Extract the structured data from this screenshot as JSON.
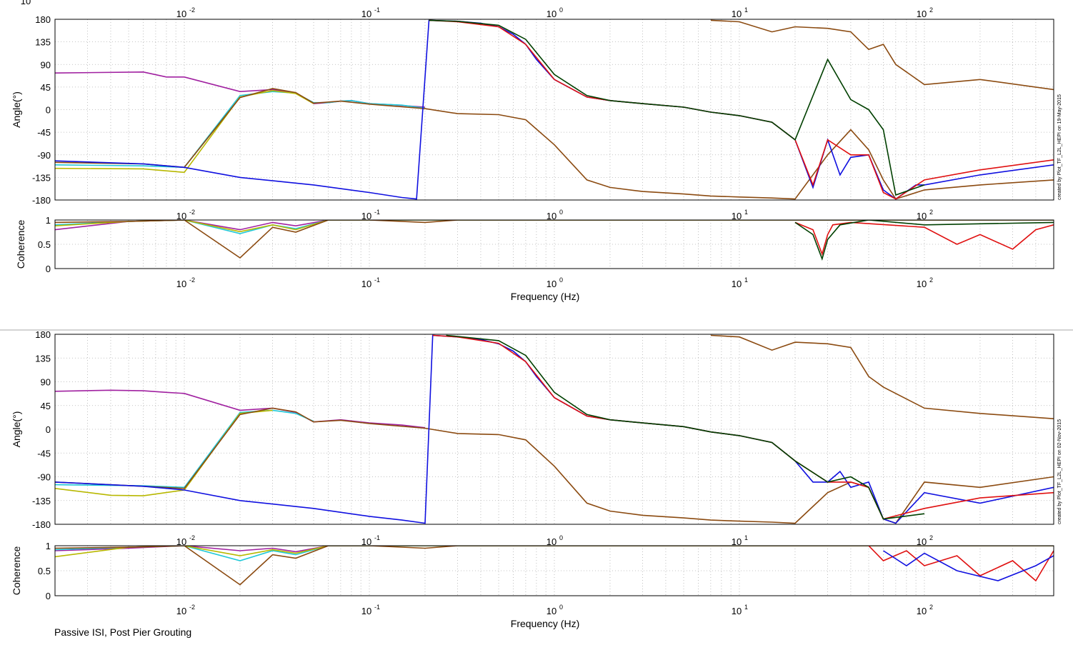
{
  "chart_data": [
    {
      "type": "line",
      "panel": "phase",
      "ylabel": "Angle(°)",
      "xscale": "log",
      "xlim": [
        0.002,
        500
      ],
      "ylim": [
        -180,
        180
      ],
      "yticks": [
        180,
        135,
        90,
        45,
        0,
        -45,
        -90,
        -135,
        -180
      ],
      "xtick_labels": [
        {
          "base": "10",
          "exp": "-2"
        },
        {
          "base": "10",
          "exp": "-1"
        },
        {
          "base": "10",
          "exp": "0"
        },
        {
          "base": "10",
          "exp": "1"
        },
        {
          "base": "10",
          "exp": "2"
        }
      ],
      "grid": true,
      "side_note": "created by Plot_TF_L2L_HEPI on 19-May-2015",
      "series": [
        {
          "color": "#a020a0",
          "x": [
            0.002,
            0.006,
            0.008,
            0.01,
            0.02,
            0.03,
            0.04,
            0.05,
            0.06,
            0.07,
            0.08,
            0.1,
            0.13,
            0.2
          ],
          "y": [
            73,
            75,
            65,
            65,
            36,
            40,
            33,
            12,
            14,
            17,
            18,
            12,
            10,
            5
          ]
        },
        {
          "color": "#20c8d8",
          "x": [
            0.002,
            0.006,
            0.01,
            0.02,
            0.03,
            0.04,
            0.05,
            0.06,
            0.07,
            0.08,
            0.1,
            0.15,
            0.2
          ],
          "y": [
            -110,
            -112,
            -115,
            28,
            36,
            33,
            14,
            14,
            17,
            18,
            12,
            9,
            3
          ]
        },
        {
          "color": "#b8b800",
          "x": [
            0.002,
            0.006,
            0.01,
            0.02,
            0.03,
            0.04,
            0.05
          ],
          "y": [
            -117,
            -118,
            -125,
            25,
            38,
            32,
            12
          ]
        },
        {
          "color": "#8b4a10",
          "x": [
            0.002,
            0.006,
            0.01,
            0.02,
            0.03,
            0.04,
            0.05,
            0.07,
            0.1,
            0.2,
            0.3,
            0.5,
            0.7,
            1,
            1.5,
            2,
            3,
            5,
            7,
            10,
            15,
            20,
            30,
            40,
            50,
            60,
            70,
            100,
            200,
            500
          ],
          "y": [
            -105,
            -108,
            -115,
            24,
            42,
            34,
            13,
            17,
            11,
            2,
            -8,
            -10,
            -20,
            -70,
            -140,
            -155,
            -163,
            -168,
            -172,
            -174,
            -176,
            -178,
            -90,
            -40,
            -80,
            -140,
            -178,
            -160,
            -150,
            -140
          ]
        },
        {
          "color": "#1010e0",
          "x": [
            0.002,
            0.006,
            0.01,
            0.02,
            0.05,
            0.1,
            0.15,
            0.18,
            0.21,
            0.3,
            0.4,
            0.5,
            0.6,
            0.7,
            0.8,
            1,
            1.5,
            2,
            3,
            5,
            7,
            10,
            15,
            20,
            25,
            30,
            35,
            40,
            50,
            60,
            70,
            90,
            100,
            200,
            500
          ],
          "y": [
            -102,
            -108,
            -115,
            -135,
            -150,
            -165,
            -175,
            -178,
            178,
            176,
            172,
            165,
            150,
            130,
            100,
            60,
            25,
            18,
            12,
            5,
            -5,
            -12,
            -25,
            -60,
            -155,
            -60,
            -130,
            -95,
            -90,
            -160,
            -178,
            -150,
            -150,
            -130,
            -110
          ]
        },
        {
          "color": "#e01010",
          "x": [
            0.21,
            0.3,
            0.5,
            0.7,
            1,
            1.5,
            2,
            3,
            5,
            7,
            10,
            15,
            20,
            25,
            30,
            40,
            50,
            60,
            70,
            100,
            200,
            500
          ],
          "y": [
            178,
            175,
            165,
            130,
            60,
            25,
            18,
            12,
            5,
            -5,
            -12,
            -25,
            -60,
            -150,
            -60,
            -90,
            -90,
            -165,
            -178,
            -140,
            -120,
            -100
          ]
        },
        {
          "color": "#004000",
          "x": [
            0.21,
            0.3,
            0.5,
            0.7,
            1,
            1.5,
            2,
            3,
            5,
            7,
            10,
            15,
            20,
            30,
            40,
            50,
            60,
            70,
            100
          ],
          "y": [
            178,
            176,
            168,
            140,
            70,
            28,
            18,
            12,
            5,
            -5,
            -12,
            -25,
            -60,
            100,
            20,
            0,
            -40,
            -170,
            -150
          ]
        },
        {
          "color": "#8b4a10",
          "x": [
            7,
            10,
            15,
            20,
            30,
            40,
            50,
            60,
            70,
            100,
            200,
            500
          ],
          "y": [
            178,
            175,
            155,
            165,
            162,
            155,
            120,
            130,
            90,
            50,
            60,
            40
          ]
        }
      ]
    },
    {
      "type": "line",
      "panel": "coherence",
      "ylabel": "Coherence",
      "xlabel": "Frequency (Hz)",
      "xscale": "log",
      "xlim": [
        0.002,
        500
      ],
      "ylim": [
        0,
        1
      ],
      "yticks": [
        1,
        0.5,
        0
      ],
      "ytick_labels": [
        "1",
        "0.5",
        "0"
      ],
      "xtick_labels": [
        {
          "base": "10",
          "exp": "-2"
        },
        {
          "base": "10",
          "exp": "-1"
        },
        {
          "base": "10",
          "exp": "0"
        },
        {
          "base": "10",
          "exp": "1"
        },
        {
          "base": "10",
          "exp": "2"
        }
      ],
      "grid": true,
      "series": [
        {
          "color": "#a020a0",
          "x": [
            0.002,
            0.005,
            0.01,
            0.02,
            0.03,
            0.04,
            0.06,
            0.1,
            0.5,
            500
          ],
          "y": [
            0.8,
            0.97,
            1,
            0.8,
            0.95,
            0.88,
            1,
            1,
            1,
            1
          ]
        },
        {
          "color": "#20c8d8",
          "x": [
            0.002,
            0.005,
            0.01,
            0.02,
            0.03,
            0.04,
            0.06,
            0.1,
            0.5,
            500
          ],
          "y": [
            0.9,
            0.97,
            1,
            0.72,
            0.9,
            0.82,
            1,
            1,
            1,
            1
          ]
        },
        {
          "color": "#b8b800",
          "x": [
            0.002,
            0.005,
            0.01,
            0.02,
            0.03,
            0.04,
            0.06,
            0.1,
            0.5,
            500
          ],
          "y": [
            0.88,
            0.97,
            1,
            0.76,
            0.9,
            0.8,
            1,
            1,
            1,
            1
          ]
        },
        {
          "color": "#8b4a10",
          "x": [
            0.002,
            0.005,
            0.01,
            0.02,
            0.03,
            0.04,
            0.06,
            0.1,
            0.2,
            0.3,
            0.5,
            500
          ],
          "y": [
            0.95,
            0.97,
            1,
            0.22,
            0.85,
            0.75,
            1,
            1,
            0.95,
            1,
            1,
            1
          ]
        },
        {
          "color": "#e01010",
          "x": [
            20,
            25,
            28,
            30,
            32,
            40,
            100,
            150,
            200,
            300,
            400,
            500
          ],
          "y": [
            0.95,
            0.8,
            0.3,
            0.7,
            0.9,
            0.95,
            0.85,
            0.5,
            0.7,
            0.4,
            0.8,
            0.9
          ]
        },
        {
          "color": "#004000",
          "x": [
            20,
            25,
            28,
            30,
            35,
            50,
            100,
            500
          ],
          "y": [
            0.95,
            0.7,
            0.2,
            0.6,
            0.9,
            1,
            0.9,
            0.95
          ]
        }
      ]
    },
    {
      "type": "line",
      "panel": "phase",
      "ylabel": "Angle(°)",
      "xscale": "log",
      "xlim": [
        0.002,
        500
      ],
      "ylim": [
        -180,
        180
      ],
      "yticks": [
        180,
        135,
        90,
        45,
        0,
        -45,
        -90,
        -135,
        -180
      ],
      "grid": true,
      "side_note": "created by Plot_TF_L2L_HEPI on 02-Nov-2015",
      "series": [
        {
          "color": "#a020a0",
          "x": [
            0.002,
            0.004,
            0.006,
            0.008,
            0.01,
            0.02,
            0.03,
            0.04,
            0.05,
            0.07,
            0.1,
            0.15,
            0.2
          ],
          "y": [
            72,
            74,
            73,
            70,
            68,
            36,
            40,
            32,
            14,
            18,
            12,
            8,
            3
          ]
        },
        {
          "color": "#20c8d8",
          "x": [
            0.002,
            0.006,
            0.01,
            0.02,
            0.03,
            0.04,
            0.05
          ],
          "y": [
            -105,
            -107,
            -110,
            32,
            36,
            30,
            15
          ]
        },
        {
          "color": "#b8b800",
          "x": [
            0.002,
            0.004,
            0.006,
            0.01,
            0.02,
            0.03
          ],
          "y": [
            -112,
            -125,
            -126,
            -115,
            30,
            36
          ]
        },
        {
          "color": "#8b4a10",
          "x": [
            0.002,
            0.006,
            0.01,
            0.02,
            0.03,
            0.04,
            0.05,
            0.07,
            0.1,
            0.2,
            0.3,
            0.5,
            0.7,
            1,
            1.5,
            2,
            3,
            5,
            7,
            10,
            15,
            20,
            30,
            40,
            50,
            60,
            70,
            100,
            200,
            500
          ],
          "y": [
            -100,
            -108,
            -112,
            28,
            40,
            33,
            14,
            17,
            11,
            2,
            -8,
            -10,
            -20,
            -70,
            -140,
            -155,
            -163,
            -168,
            -172,
            -174,
            -176,
            -178,
            -120,
            -100,
            -110,
            -170,
            -178,
            -100,
            -110,
            -90
          ]
        },
        {
          "color": "#1010e0",
          "x": [
            0.002,
            0.006,
            0.01,
            0.02,
            0.05,
            0.1,
            0.15,
            0.2,
            0.22,
            0.3,
            0.4,
            0.5,
            0.6,
            0.7,
            0.8,
            1,
            1.5,
            2,
            3,
            5,
            7,
            10,
            15,
            20,
            25,
            30,
            35,
            40,
            50,
            60,
            70,
            100,
            200,
            500
          ],
          "y": [
            -100,
            -108,
            -115,
            -135,
            -150,
            -165,
            -172,
            -178,
            178,
            175,
            170,
            162,
            148,
            128,
            100,
            60,
            25,
            18,
            12,
            5,
            -5,
            -12,
            -25,
            -60,
            -100,
            -100,
            -80,
            -110,
            -100,
            -170,
            -178,
            -120,
            -140,
            -110
          ]
        },
        {
          "color": "#e01010",
          "x": [
            0.22,
            0.3,
            0.5,
            0.7,
            1,
            1.5,
            2,
            3,
            5,
            7,
            10,
            15,
            20,
            30,
            40,
            50,
            60,
            100,
            200,
            500
          ],
          "y": [
            178,
            175,
            163,
            128,
            60,
            25,
            18,
            12,
            5,
            -5,
            -12,
            -25,
            -60,
            -100,
            -100,
            -110,
            -170,
            -150,
            -130,
            -120
          ]
        },
        {
          "color": "#004000",
          "x": [
            0.26,
            0.3,
            0.5,
            0.7,
            1,
            1.5,
            2,
            3,
            5,
            7,
            10,
            15,
            20,
            30,
            40,
            50,
            60,
            100
          ],
          "y": [
            178,
            176,
            168,
            140,
            70,
            28,
            18,
            12,
            5,
            -5,
            -12,
            -25,
            -60,
            -100,
            -90,
            -110,
            -170,
            -160
          ]
        },
        {
          "color": "#8b4a10",
          "x": [
            7,
            10,
            15,
            20,
            30,
            40,
            50,
            60,
            100,
            200,
            500
          ],
          "y": [
            178,
            175,
            150,
            165,
            162,
            155,
            100,
            80,
            40,
            30,
            20
          ]
        }
      ]
    },
    {
      "type": "line",
      "panel": "coherence",
      "ylabel": "Coherence",
      "xlabel": "Frequency (Hz)",
      "xscale": "log",
      "xlim": [
        0.002,
        500
      ],
      "ylim": [
        0,
        1
      ],
      "yticks": [
        1,
        0.5,
        0
      ],
      "ytick_labels": [
        "1",
        "0.5",
        "0"
      ],
      "xtick_labels": [
        {
          "base": "10",
          "exp": "-2"
        },
        {
          "base": "10",
          "exp": "-1"
        },
        {
          "base": "10",
          "exp": "0"
        },
        {
          "base": "10",
          "exp": "1"
        },
        {
          "base": "10",
          "exp": "2"
        }
      ],
      "grid": true,
      "series": [
        {
          "color": "#a020a0",
          "x": [
            0.002,
            0.005,
            0.01,
            0.02,
            0.03,
            0.04,
            0.06,
            0.1,
            0.5,
            500
          ],
          "y": [
            0.9,
            0.95,
            1,
            0.9,
            0.95,
            0.88,
            1,
            1,
            1,
            1
          ]
        },
        {
          "color": "#20c8d8",
          "x": [
            0.002,
            0.005,
            0.01,
            0.02,
            0.03,
            0.04,
            0.06,
            0.1,
            0.5,
            500
          ],
          "y": [
            0.92,
            0.97,
            1,
            0.7,
            0.9,
            0.82,
            1,
            1,
            1,
            1
          ]
        },
        {
          "color": "#b8b800",
          "x": [
            0.002,
            0.005,
            0.01,
            0.02,
            0.03,
            0.04,
            0.06,
            0.1,
            0.5,
            500
          ],
          "y": [
            0.78,
            0.97,
            1,
            0.8,
            0.92,
            0.85,
            1,
            1,
            1,
            1
          ]
        },
        {
          "color": "#8b4a10",
          "x": [
            0.002,
            0.005,
            0.01,
            0.02,
            0.03,
            0.04,
            0.06,
            0.1,
            0.2,
            0.3,
            0.5,
            500
          ],
          "y": [
            0.95,
            0.97,
            1,
            0.22,
            0.82,
            0.75,
            1,
            1,
            0.95,
            1,
            1,
            1
          ]
        },
        {
          "color": "#e01010",
          "x": [
            50,
            60,
            80,
            100,
            150,
            200,
            300,
            400,
            500
          ],
          "y": [
            1,
            0.7,
            0.9,
            0.6,
            0.8,
            0.4,
            0.7,
            0.3,
            0.9
          ]
        },
        {
          "color": "#1010e0",
          "x": [
            60,
            80,
            100,
            150,
            250,
            400,
            500
          ],
          "y": [
            0.9,
            0.6,
            0.85,
            0.5,
            0.3,
            0.6,
            0.8
          ]
        }
      ]
    }
  ],
  "caption": "Passive ISI, Post Pier Grouting",
  "top_clip_label": "10"
}
